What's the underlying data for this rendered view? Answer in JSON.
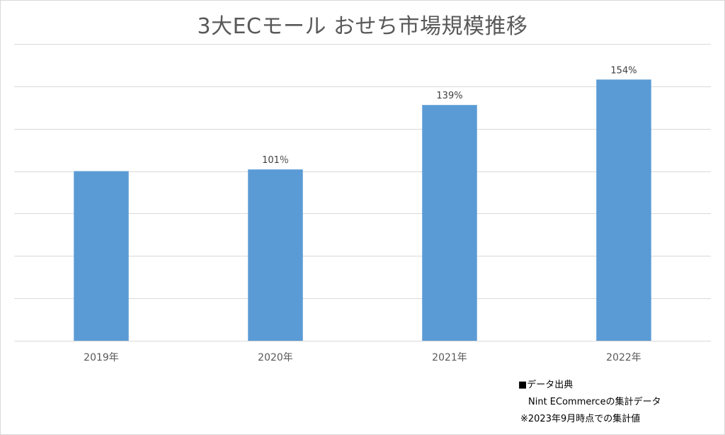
{
  "chart_data": {
    "type": "bar",
    "title": "3大ECモール おせち市場規模推移",
    "categories": [
      "2019年",
      "2020年",
      "2021年",
      "2022年"
    ],
    "values": [
      100,
      101,
      139,
      154
    ],
    "value_labels": [
      "",
      "101％",
      "139%",
      "154%"
    ],
    "ylim": [
      0,
      175
    ],
    "grid": true,
    "y_axis_labels_visible": false,
    "bar_color": "#5b9bd5"
  },
  "notes": {
    "line1": "■データ出典",
    "line2": "Nint ECommerceの集計データ",
    "line3": "※2023年9月時点での集計値"
  }
}
